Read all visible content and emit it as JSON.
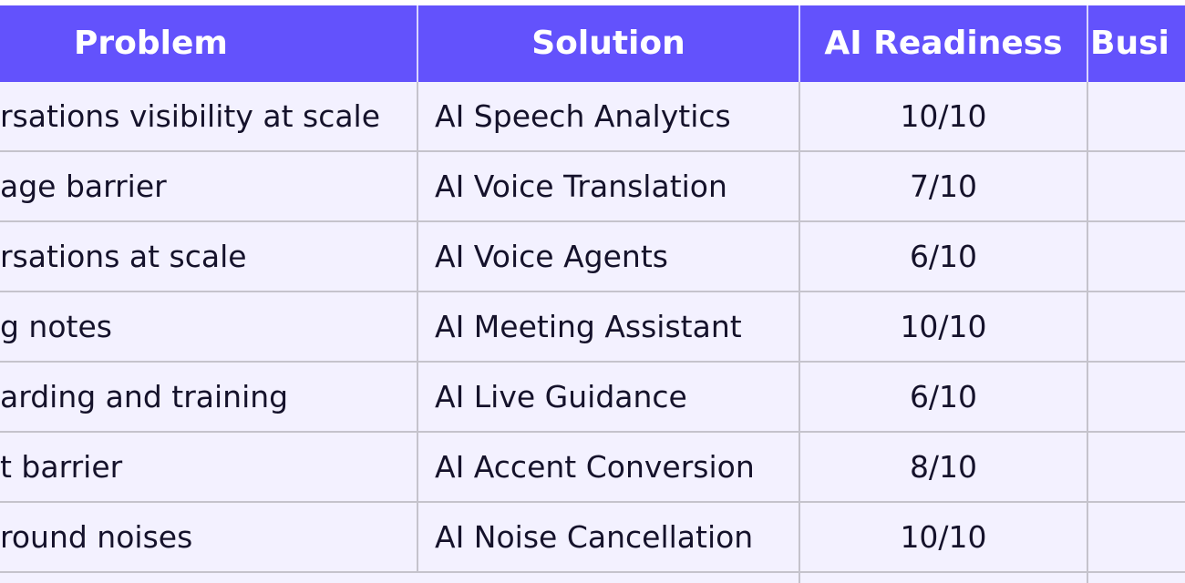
{
  "table": {
    "headers": {
      "problem": "Problem",
      "solution": "Solution",
      "readiness": "AI Readiness",
      "business": "Busi"
    },
    "rows": [
      {
        "problem": "rsations visibility at scale",
        "solution": "AI Speech Analytics",
        "readiness": "10/10",
        "business": ""
      },
      {
        "problem": "age barrier",
        "solution": "AI Voice Translation",
        "readiness": "7/10",
        "business": ""
      },
      {
        "problem": "rsations at scale",
        "solution": "AI Voice Agents",
        "readiness": "6/10",
        "business": ""
      },
      {
        "problem": "g notes",
        "solution": "AI Meeting Assistant",
        "readiness": "10/10",
        "business": ""
      },
      {
        "problem": "arding and training",
        "solution": "AI Live Guidance",
        "readiness": "6/10",
        "business": ""
      },
      {
        "problem": "t barrier",
        "solution": "AI Accent Conversion",
        "readiness": "8/10",
        "business": ""
      },
      {
        "problem": "round noises",
        "solution": "AI Noise Cancellation",
        "readiness": "10/10",
        "business": ""
      }
    ]
  },
  "colors": {
    "header_bg": "#6352fc",
    "row_bg": "#f3f1ff",
    "border": "#c5c3cc",
    "text": "#15122b"
  }
}
